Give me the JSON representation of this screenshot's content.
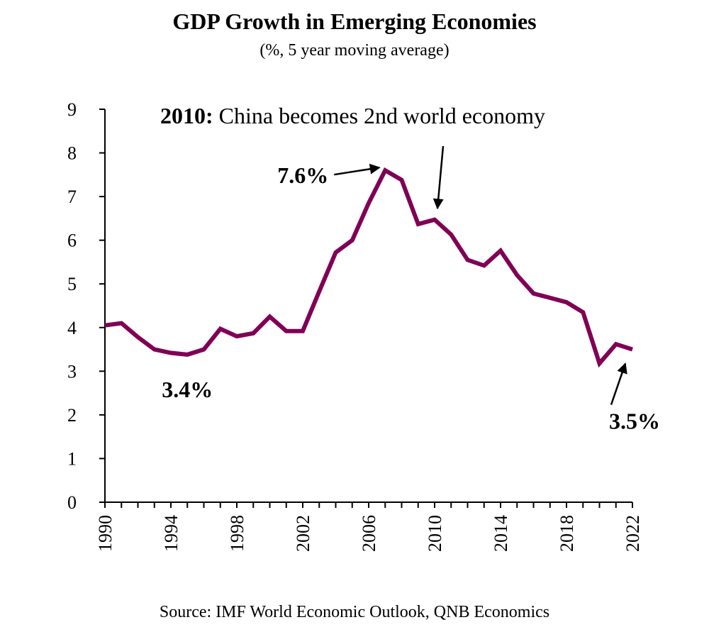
{
  "chart_data": {
    "type": "line",
    "title": "GDP Growth in Emerging Economies",
    "subtitle": "(%, 5 year moving average)",
    "source": "Source: IMF World Economic Outlook, QNB Economics",
    "xlabel": "",
    "ylabel": "",
    "ylim": [
      0,
      9
    ],
    "yticks": [
      "0",
      "1",
      "2",
      "3",
      "4",
      "5",
      "6",
      "7",
      "8",
      "9"
    ],
    "xticks": [
      "1990",
      "1994",
      "1998",
      "2002",
      "2006",
      "2010",
      "2014",
      "2018",
      "2022"
    ],
    "xlim": [
      1990,
      2022
    ],
    "series": [
      {
        "name": "GDP growth, 5y moving average",
        "color": "#800055",
        "x": [
          1990,
          1991,
          1992,
          1993,
          1994,
          1995,
          1996,
          1997,
          1998,
          1999,
          2000,
          2001,
          2002,
          2003,
          2004,
          2005,
          2006,
          2007,
          2008,
          2009,
          2010,
          2011,
          2012,
          2013,
          2014,
          2015,
          2016,
          2017,
          2018,
          2019,
          2020,
          2021,
          2022
        ],
        "values": [
          4.05,
          4.1,
          3.78,
          3.5,
          3.42,
          3.38,
          3.5,
          3.97,
          3.8,
          3.87,
          4.25,
          3.92,
          3.92,
          4.83,
          5.72,
          6.0,
          6.85,
          7.6,
          7.38,
          6.37,
          6.47,
          6.13,
          5.55,
          5.42,
          5.76,
          5.2,
          4.78,
          4.68,
          4.58,
          4.35,
          3.18,
          3.62,
          3.5
        ]
      }
    ],
    "annotations": [
      {
        "label": "3.4%",
        "x": 1995,
        "y": 3.38
      },
      {
        "label": "7.6%",
        "x": 2007,
        "y": 7.6
      },
      {
        "label": "3.5%",
        "x": 2022,
        "y": 3.5
      },
      {
        "year_label": "2010:",
        "label": "China becomes 2nd world economy",
        "x": 2010,
        "y": 6.47
      }
    ]
  }
}
